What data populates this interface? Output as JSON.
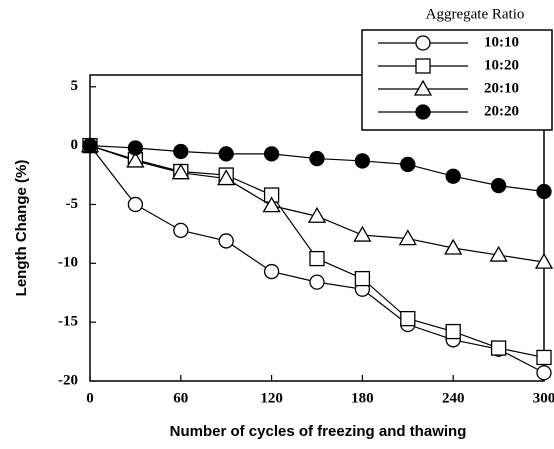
{
  "chart_data": {
    "type": "line",
    "xlabel": "Number of cycles of freezing and thawing",
    "ylabel": "Length Change (%)",
    "legend_title": "Aggregate Ratio",
    "legend": "upper right",
    "x": [
      0,
      30,
      60,
      90,
      120,
      150,
      180,
      210,
      240,
      270,
      300
    ],
    "xlim": [
      0,
      300
    ],
    "xticks": [
      0,
      60,
      120,
      180,
      240,
      300
    ],
    "ylim": [
      -20,
      6
    ],
    "yticks": [
      -20,
      -15,
      -10,
      -5,
      0,
      5
    ],
    "series": [
      {
        "name": "10:10",
        "color": "#000000",
        "marker": "circle",
        "filled": false,
        "values": [
          0,
          -5,
          -7.2,
          -8.1,
          -10.7,
          -11.6,
          -12.2,
          -15.2,
          -16.5,
          -17.3,
          -19.3
        ]
      },
      {
        "name": "10:20",
        "color": "#000000",
        "marker": "square",
        "filled": false,
        "values": [
          0,
          -1.2,
          -2.2,
          -2.5,
          -4.2,
          -9.6,
          -11.3,
          -14.7,
          -15.8,
          -17.2,
          -18
        ]
      },
      {
        "name": "20:10",
        "color": "#000000",
        "marker": "triangle",
        "filled": false,
        "values": [
          0,
          -1.3,
          -2.3,
          -2.8,
          -5.1,
          -6,
          -7.6,
          -7.9,
          -8.7,
          -9.3,
          -9.9
        ]
      },
      {
        "name": "20:20",
        "color": "#000000",
        "marker": "circle",
        "filled": true,
        "values": [
          0,
          -0.2,
          -0.5,
          -0.7,
          -0.7,
          -1.1,
          -1.3,
          -1.6,
          -2.6,
          -3.4,
          -3.9
        ]
      }
    ]
  }
}
